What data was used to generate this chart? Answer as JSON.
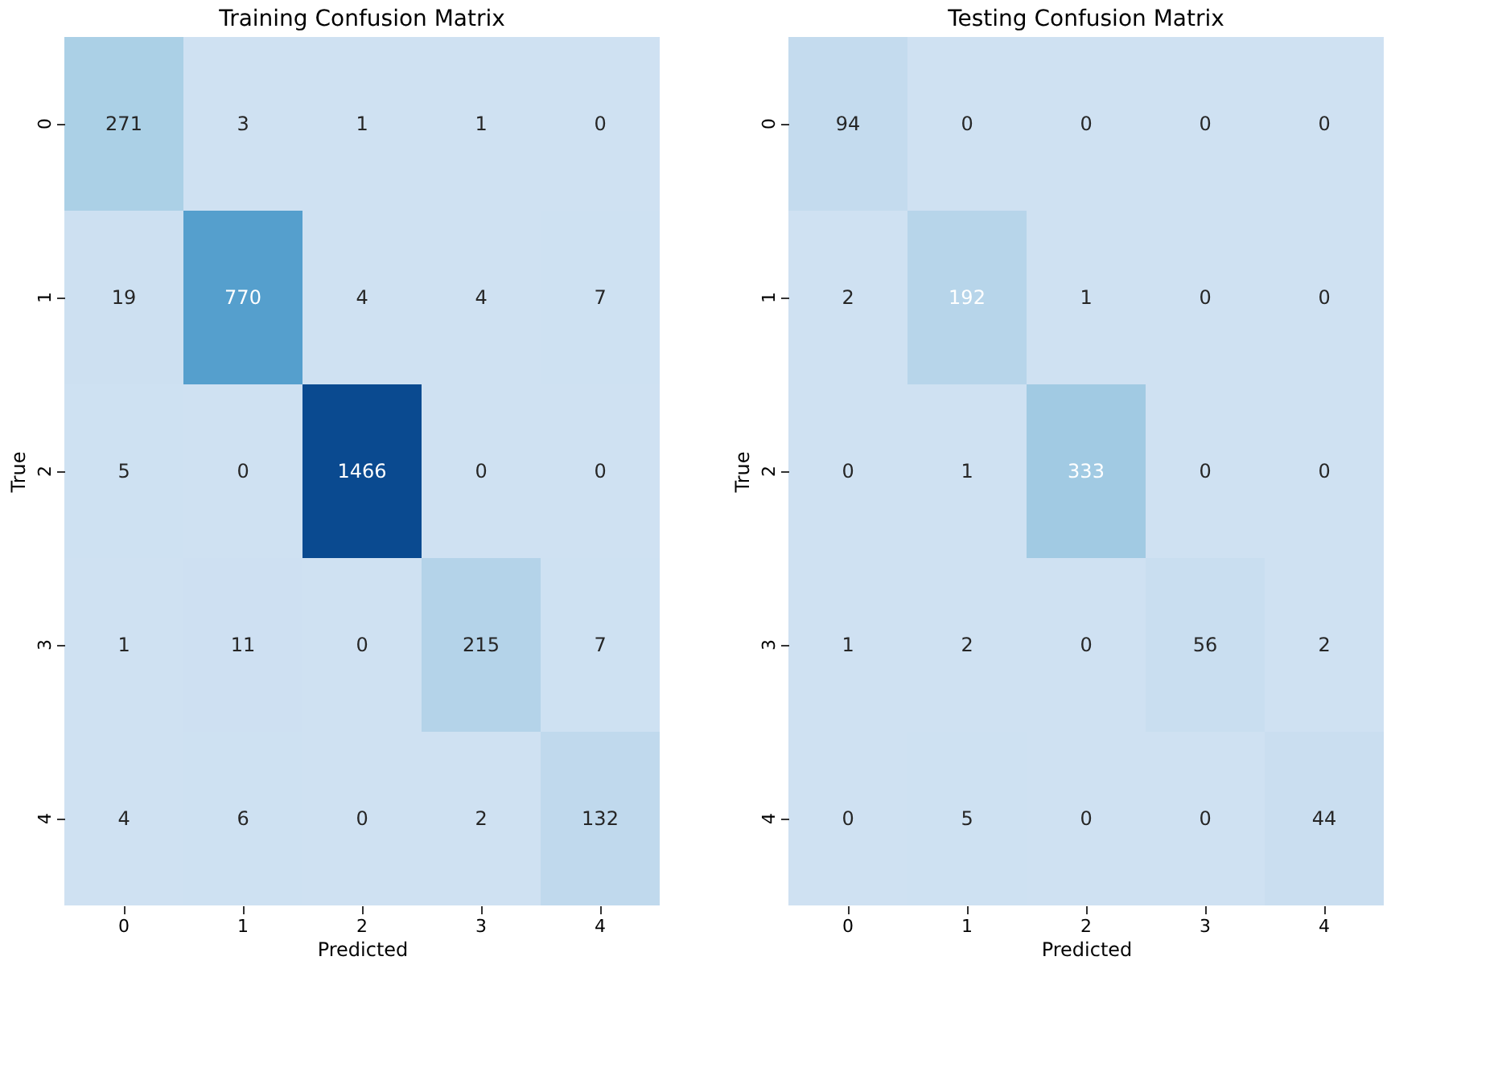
{
  "chart_data": [
    {
      "type": "heatmap",
      "title": "Training Confusion Matrix",
      "xlabel": "Predicted",
      "ylabel": "True",
      "categories": [
        "0",
        "1",
        "2",
        "3",
        "4"
      ],
      "y_categories": [
        "0",
        "1",
        "2",
        "3",
        "4"
      ],
      "data_labels": true,
      "cells": [
        [
          271,
          3,
          1,
          1,
          0
        ],
        [
          19,
          770,
          4,
          4,
          7
        ],
        [
          5,
          0,
          1466,
          0,
          0
        ],
        [
          1,
          11,
          0,
          215,
          7
        ],
        [
          4,
          6,
          0,
          2,
          132
        ]
      ]
    },
    {
      "type": "heatmap",
      "title": "Testing Confusion Matrix",
      "xlabel": "Predicted",
      "ylabel": "True",
      "categories": [
        "0",
        "1",
        "2",
        "3",
        "4"
      ],
      "y_categories": [
        "0",
        "1",
        "2",
        "3",
        "4"
      ],
      "data_labels": true,
      "cells": [
        [
          94,
          0,
          0,
          0,
          0
        ],
        [
          2,
          192,
          1,
          0,
          0
        ],
        [
          0,
          1,
          333,
          0,
          0
        ],
        [
          1,
          2,
          0,
          56,
          2
        ],
        [
          0,
          5,
          0,
          0,
          44
        ]
      ]
    }
  ]
}
